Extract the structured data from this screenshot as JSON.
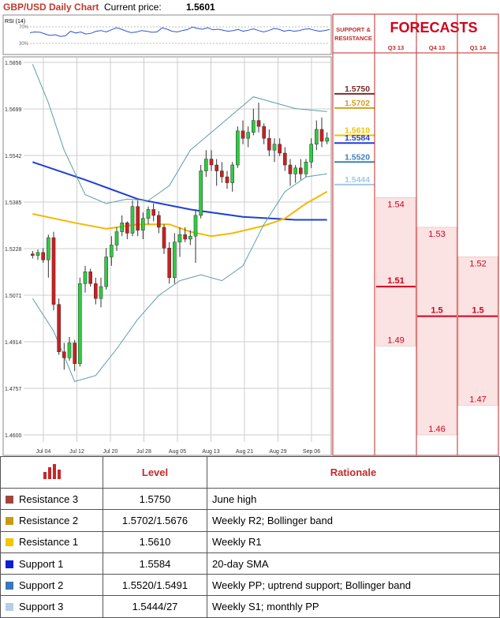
{
  "header": {
    "title": "GBP/USD Daily Chart",
    "price_label": "Current price:",
    "price": "1.5601"
  },
  "rsi": {
    "label": "RSI (14)",
    "tick_70": "70%",
    "tick_30": "30%"
  },
  "colors": {
    "title_red": "#c0392b",
    "bull": "#2ecc40",
    "bear": "#cc1f1f",
    "sma200": "#1f3fd6",
    "sma50": "#f5b800",
    "bollinger": "#5c9ea0",
    "forecast_red": "#d0021b"
  },
  "chart_data": [
    {
      "type": "candlestick",
      "title": "GBP/USD Daily Chart",
      "y_ticks": [
        "1.5856",
        "1.5699",
        "1.5542",
        "1.5385",
        "1.5228",
        "1.5071",
        "1.4914",
        "1.4757",
        "1.4600"
      ],
      "ylim": [
        1.46,
        1.5856
      ],
      "x_ticks": [
        "Jul 04",
        "Jul 12",
        "Jul 20",
        "Jul 28",
        "Aug 05",
        "Aug 13",
        "Aug 21",
        "Aug 29",
        "Sep 06"
      ],
      "series": [
        {
          "kind": "ohlc",
          "points": [
            [
              1.521,
              1.522,
              1.5195,
              1.5205
            ],
            [
              1.5205,
              1.5225,
              1.519,
              1.5215
            ],
            [
              1.5215,
              1.523,
              1.518,
              1.519
            ],
            [
              1.519,
              1.5275,
              1.513,
              1.5265
            ],
            [
              1.5265,
              1.5285,
              1.502,
              1.504
            ],
            [
              1.504,
              1.506,
              1.487,
              1.488
            ],
            [
              1.488,
              1.491,
              1.482,
              1.486
            ],
            [
              1.486,
              1.493,
              1.485,
              1.491
            ],
            [
              1.491,
              1.492,
              1.4815,
              1.484
            ],
            [
              1.484,
              1.513,
              1.483,
              1.511
            ],
            [
              1.511,
              1.517,
              1.508,
              1.515
            ],
            [
              1.515,
              1.516,
              1.51,
              1.511
            ],
            [
              1.511,
              1.513,
              1.504,
              1.506
            ],
            [
              1.506,
              1.513,
              1.503,
              1.51
            ],
            [
              1.51,
              1.523,
              1.509,
              1.52
            ],
            [
              1.52,
              1.527,
              1.517,
              1.524
            ],
            [
              1.524,
              1.53,
              1.522,
              1.5285
            ],
            [
              1.5285,
              1.534,
              1.527,
              1.5315
            ],
            [
              1.5315,
              1.532,
              1.526,
              1.528
            ],
            [
              1.528,
              1.539,
              1.527,
              1.537
            ],
            [
              1.537,
              1.539,
              1.527,
              1.529
            ],
            [
              1.529,
              1.535,
              1.526,
              1.533
            ],
            [
              1.533,
              1.537,
              1.531,
              1.536
            ],
            [
              1.536,
              1.538,
              1.532,
              1.534
            ],
            [
              1.534,
              1.5355,
              1.528,
              1.53
            ],
            [
              1.53,
              1.531,
              1.521,
              1.523
            ],
            [
              1.523,
              1.525,
              1.511,
              1.513
            ],
            [
              1.513,
              1.528,
              1.511,
              1.525
            ],
            [
              1.525,
              1.53,
              1.52,
              1.5275
            ],
            [
              1.5275,
              1.53,
              1.525,
              1.526
            ],
            [
              1.526,
              1.529,
              1.524,
              1.527
            ],
            [
              1.527,
              1.536,
              1.518,
              1.534
            ],
            [
              1.534,
              1.551,
              1.533,
              1.549
            ],
            [
              1.549,
              1.556,
              1.547,
              1.553
            ],
            [
              1.553,
              1.556,
              1.549,
              1.551
            ],
            [
              1.551,
              1.553,
              1.544,
              1.549
            ],
            [
              1.549,
              1.552,
              1.545,
              1.547
            ],
            [
              1.547,
              1.549,
              1.543,
              1.545
            ],
            [
              1.545,
              1.552,
              1.542,
              1.551
            ],
            [
              1.551,
              1.564,
              1.55,
              1.5625
            ],
            [
              1.5625,
              1.566,
              1.558,
              1.56
            ],
            [
              1.56,
              1.564,
              1.557,
              1.562
            ],
            [
              1.562,
              1.57,
              1.561,
              1.566
            ],
            [
              1.566,
              1.572,
              1.562,
              1.564
            ],
            [
              1.564,
              1.565,
              1.558,
              1.56
            ],
            [
              1.56,
              1.563,
              1.554,
              1.556
            ],
            [
              1.556,
              1.56,
              1.552,
              1.558
            ],
            [
              1.558,
              1.56,
              1.554,
              1.555
            ],
            [
              1.555,
              1.557,
              1.549,
              1.551
            ],
            [
              1.551,
              1.553,
              1.544,
              1.548
            ],
            [
              1.548,
              1.551,
              1.545,
              1.55
            ],
            [
              1.55,
              1.553,
              1.546,
              1.548
            ],
            [
              1.548,
              1.553,
              1.547,
              1.552
            ],
            [
              1.552,
              1.56,
              1.55,
              1.558
            ],
            [
              1.558,
              1.566,
              1.556,
              1.563
            ],
            [
              1.563,
              1.567,
              1.557,
              1.559
            ],
            [
              1.559,
              1.562,
              1.558,
              1.5601
            ]
          ]
        },
        {
          "kind": "line",
          "color": "#1f3fd6",
          "points": [
            [
              0,
              1.552
            ],
            [
              10,
              1.546
            ],
            [
              20,
              1.5395
            ],
            [
              30,
              1.536
            ],
            [
              40,
              1.5335
            ],
            [
              50,
              1.5325
            ],
            [
              56,
              1.5325
            ]
          ]
        },
        {
          "kind": "line",
          "color": "#f5b800",
          "points": [
            [
              0,
              1.5345
            ],
            [
              8,
              1.5315
            ],
            [
              14,
              1.5295
            ],
            [
              20,
              1.531
            ],
            [
              26,
              1.531
            ],
            [
              30,
              1.5285
            ],
            [
              34,
              1.527
            ],
            [
              38,
              1.528
            ],
            [
              44,
              1.5305
            ],
            [
              48,
              1.533
            ],
            [
              52,
              1.538
            ],
            [
              56,
              1.542
            ]
          ]
        },
        {
          "kind": "line",
          "color": "#5c9ea0",
          "points": [
            [
              0,
              1.585
            ],
            [
              3,
              1.572
            ],
            [
              6,
              1.556
            ],
            [
              10,
              1.541
            ],
            [
              14,
              1.538
            ],
            [
              18,
              1.5395
            ],
            [
              22,
              1.539
            ],
            [
              26,
              1.544
            ],
            [
              30,
              1.556
            ],
            [
              34,
              1.562
            ],
            [
              38,
              1.568
            ],
            [
              42,
              1.574
            ],
            [
              46,
              1.572
            ],
            [
              50,
              1.57
            ],
            [
              56,
              1.569
            ]
          ]
        },
        {
          "kind": "line",
          "color": "#5c9ea0",
          "points": [
            [
              0,
              1.506
            ],
            [
              4,
              1.495
            ],
            [
              8,
              1.478
            ],
            [
              12,
              1.48
            ],
            [
              16,
              1.489
            ],
            [
              20,
              1.499
            ],
            [
              24,
              1.507
            ],
            [
              28,
              1.512
            ],
            [
              32,
              1.514
            ],
            [
              36,
              1.512
            ],
            [
              40,
              1.517
            ],
            [
              44,
              1.531
            ],
            [
              48,
              1.542
            ],
            [
              52,
              1.547
            ],
            [
              56,
              1.548
            ]
          ]
        }
      ]
    },
    {
      "type": "line",
      "title": "RSI (14)",
      "ylim": [
        0,
        100
      ],
      "values": [
        56,
        58,
        57,
        52,
        48,
        50,
        45,
        47,
        60,
        55,
        58,
        52,
        54,
        60,
        62,
        58,
        64,
        70,
        66,
        60,
        56,
        58,
        62,
        60,
        57,
        58,
        70,
        66,
        60,
        58,
        62,
        65,
        72,
        68,
        66,
        70,
        64,
        66,
        63,
        60,
        62,
        65,
        60,
        63,
        67,
        62,
        58,
        62,
        68,
        66,
        60,
        63,
        60,
        62,
        66,
        67,
        63,
        60,
        62,
        65
      ]
    }
  ],
  "sr_levels": [
    {
      "label": "1.5750",
      "value": 1.575,
      "color": "#7b2b2b",
      "pos": "left"
    },
    {
      "label": "1.5702",
      "value": 1.5702,
      "color": "#d0a020",
      "pos": "right"
    },
    {
      "label": "1.5610",
      "value": 1.561,
      "color": "#f5c000",
      "pos": "left"
    },
    {
      "label": "1.5584",
      "value": 1.5584,
      "color": "#1f3fd6",
      "pos": "left"
    },
    {
      "label": "1.5520",
      "value": 1.552,
      "color": "#3d7fb5",
      "pos": "right"
    },
    {
      "label": "1.5444",
      "value": 1.5444,
      "color": "#a6c8e0",
      "pos": "right"
    }
  ],
  "sr_panel": {
    "title": "SUPPORT & RESISTANCE"
  },
  "forecasts": {
    "title": "FORECASTS",
    "columns": [
      {
        "label": "Q3 13",
        "high": "1.54",
        "mid": "1.51",
        "low": "1.49",
        "high_v": 1.54,
        "mid_v": 1.51,
        "low_v": 1.49
      },
      {
        "label": "Q4 13",
        "high": "1.53",
        "mid": "1.5",
        "low": "1.46",
        "high_v": 1.53,
        "mid_v": 1.5,
        "low_v": 1.46
      },
      {
        "label": "Q1 14",
        "high": "1.52",
        "mid": "1.5",
        "low": "1.47",
        "high_v": 1.52,
        "mid_v": 1.5,
        "low_v": 1.47
      }
    ]
  },
  "table": {
    "headers": {
      "level": "Level",
      "rationale": "Rationale"
    },
    "icon": "bar-chart-icon",
    "rows": [
      {
        "name": "Resistance 3",
        "level": "1.5750",
        "rationale": "June high",
        "color": "#a0463c"
      },
      {
        "name": "Resistance 2",
        "level": "1.5702/1.5676",
        "rationale": "Weekly R2; Bollinger band",
        "color": "#c89b10"
      },
      {
        "name": "Resistance 1",
        "level": "1.5610",
        "rationale": "Weekly R1",
        "color": "#f6c400"
      },
      {
        "name": "Support 1",
        "level": "1.5584",
        "rationale": "20-day SMA",
        "color": "#0b1fd6"
      },
      {
        "name": "Support 2",
        "level": "1.5520/1.5491",
        "rationale": "Weekly PP; uptrend support; Bollinger band",
        "color": "#3a78b8"
      },
      {
        "name": "Support 3",
        "level": "1.5444/27",
        "rationale": "Weekly S1; monthly PP",
        "color": "#b3cfe6"
      }
    ]
  }
}
